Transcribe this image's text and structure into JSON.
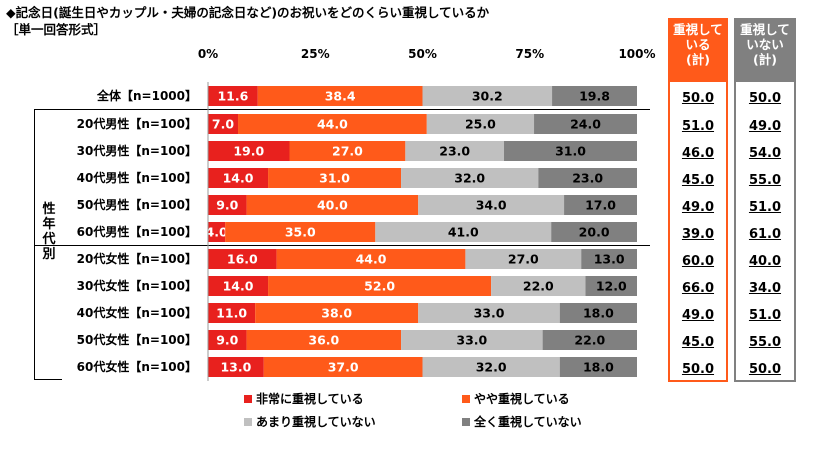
{
  "title": "◆記念日(誕生日やカップル・夫婦の記念日など)のお祝いをどのくらい重視しているか",
  "subtitle": "［単一回答形式］",
  "group_label": "性年代別",
  "colors": {
    "s1": "#e8211e",
    "s2": "#ff5a1a",
    "s3": "#c0c0c0",
    "s4": "#808080",
    "box_important": "#ff5a1a",
    "box_not_important": "#808080"
  },
  "summary": {
    "important_header": "重視して\nいる\n(計)",
    "not_important_header": "重視して\nいない\n(計)",
    "important": [
      "50.0",
      "51.0",
      "46.0",
      "45.0",
      "49.0",
      "39.0",
      "60.0",
      "66.0",
      "49.0",
      "45.0",
      "50.0"
    ],
    "not_important": [
      "50.0",
      "49.0",
      "54.0",
      "55.0",
      "51.0",
      "61.0",
      "40.0",
      "34.0",
      "51.0",
      "55.0",
      "50.0"
    ]
  },
  "chart_data": {
    "type": "bar",
    "orientation": "horizontal-stacked-100",
    "xlim": [
      0,
      100
    ],
    "ticks": [
      "0%",
      "25%",
      "50%",
      "75%",
      "100%"
    ],
    "categories": [
      "全体【n=1000】",
      "20代男性【n=100】",
      "30代男性【n=100】",
      "40代男性【n=100】",
      "50代男性【n=100】",
      "60代男性【n=100】",
      "20代女性【n=100】",
      "30代女性【n=100】",
      "40代女性【n=100】",
      "50代女性【n=100】",
      "60代女性【n=100】"
    ],
    "series": [
      {
        "name": "非常に重視している",
        "values": [
          11.6,
          7.0,
          19.0,
          14.0,
          9.0,
          4.0,
          16.0,
          14.0,
          11.0,
          9.0,
          13.0
        ]
      },
      {
        "name": "やや重視している",
        "values": [
          38.4,
          44.0,
          27.0,
          31.0,
          40.0,
          35.0,
          44.0,
          52.0,
          38.0,
          36.0,
          37.0
        ]
      },
      {
        "name": "あまり重視していない",
        "values": [
          30.2,
          25.0,
          23.0,
          32.0,
          34.0,
          41.0,
          27.0,
          22.0,
          33.0,
          33.0,
          32.0
        ]
      },
      {
        "name": "全く重視していない",
        "values": [
          19.8,
          24.0,
          31.0,
          23.0,
          17.0,
          20.0,
          13.0,
          12.0,
          18.0,
          22.0,
          18.0
        ]
      }
    ],
    "legend": "bottom"
  }
}
